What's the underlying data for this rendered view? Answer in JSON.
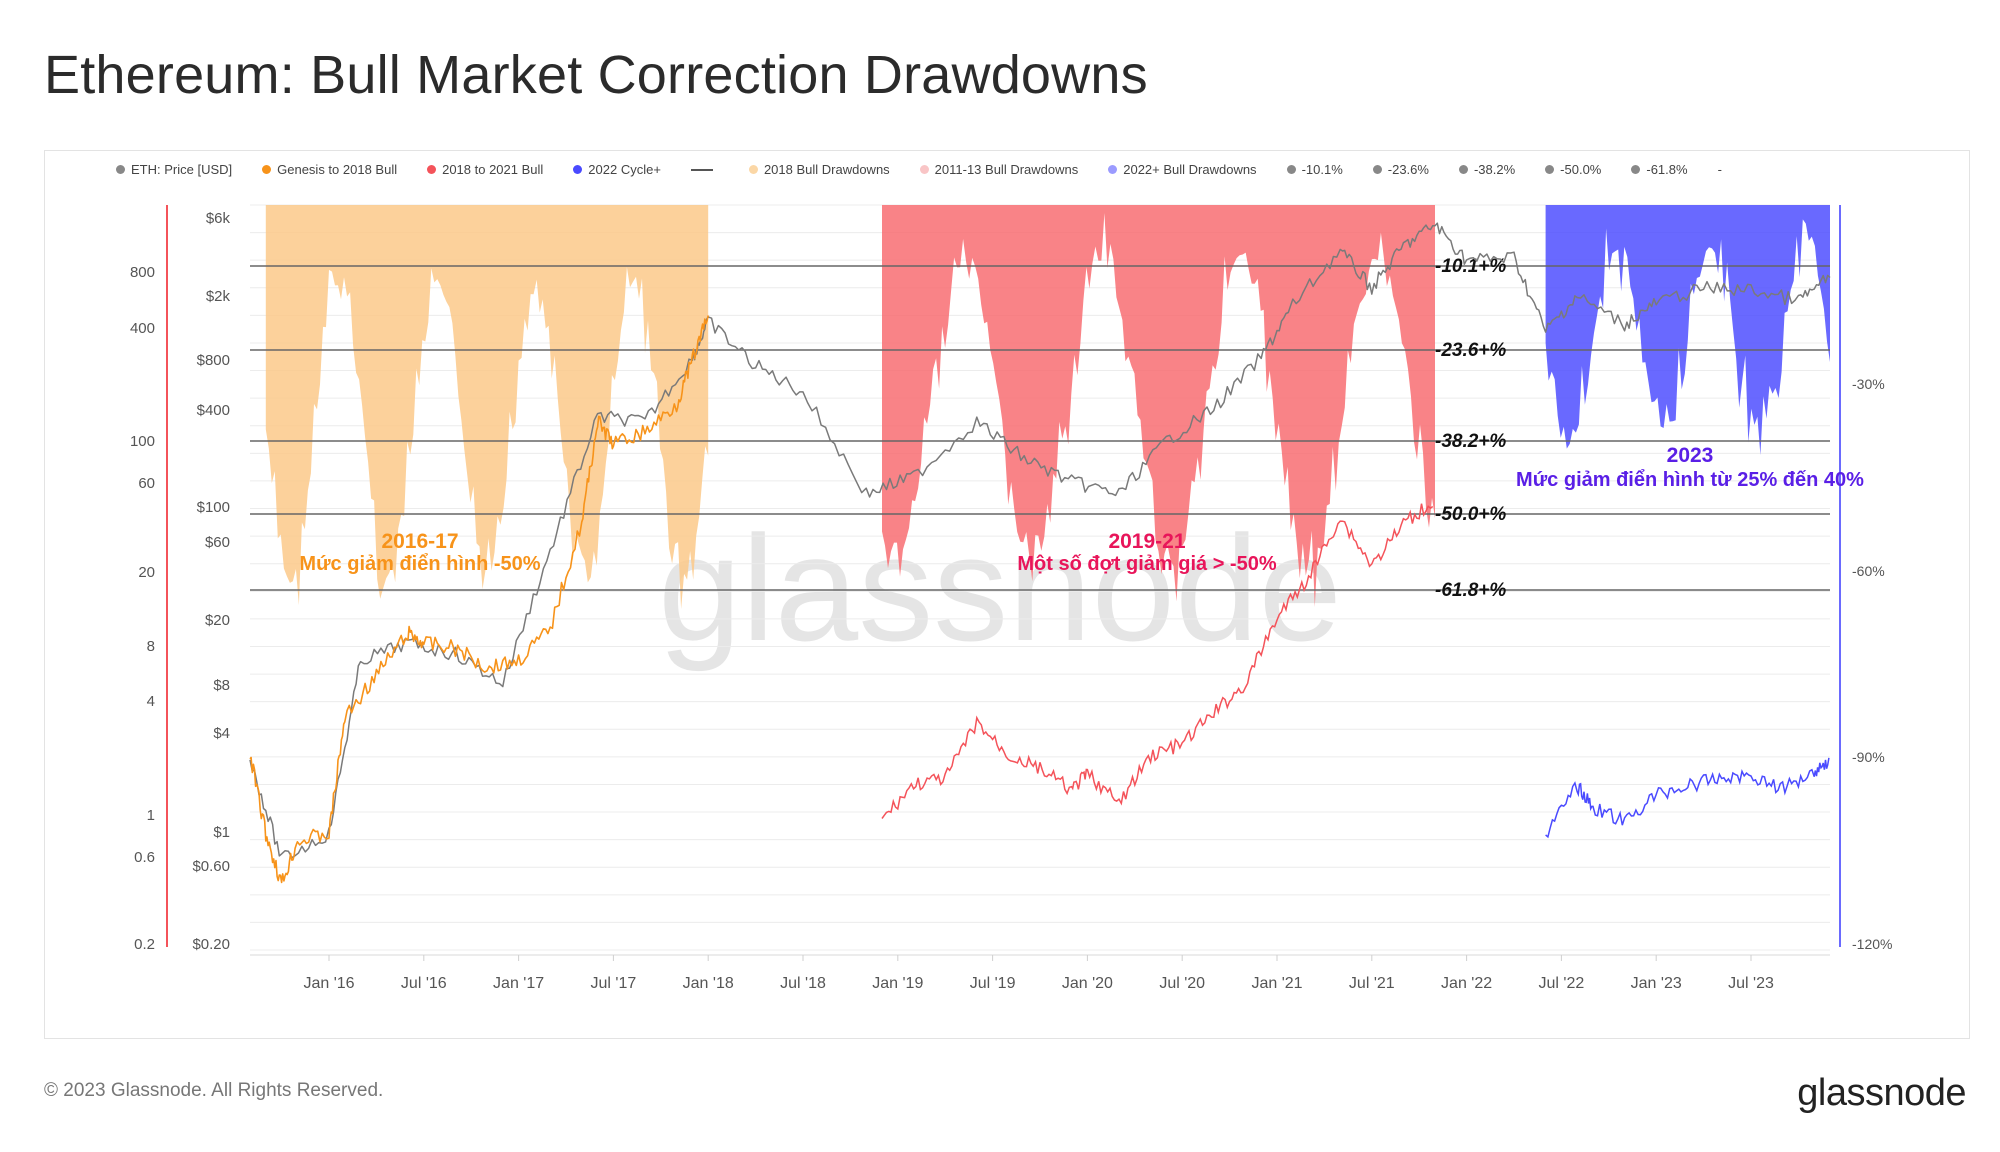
{
  "title": "Ethereum: Bull Market Correction Drawdowns",
  "footer": "© 2023 Glassnode. All Rights Reserved.",
  "brand": "glassnode",
  "watermark": "glassnode",
  "legend": [
    {
      "label": "ETH: Price [USD]",
      "color": "#888888",
      "kind": "dot"
    },
    {
      "label": "Genesis to 2018 Bull",
      "color": "#f7931a",
      "kind": "dot"
    },
    {
      "label": "2018 to 2021 Bull",
      "color": "#f4535a",
      "kind": "dot"
    },
    {
      "label": "2022 Cycle+",
      "color": "#4a4aff",
      "kind": "dot"
    },
    {
      "label": "",
      "color": "#555555",
      "kind": "line"
    },
    {
      "label": "2018 Bull Drawdowns",
      "color": "#fbd7a6",
      "kind": "dot"
    },
    {
      "label": "2011-13 Bull Drawdowns",
      "color": "#f9c5c6",
      "kind": "dot"
    },
    {
      "label": "2022+ Bull Drawdowns",
      "color": "#9b9bff",
      "kind": "dot"
    },
    {
      "label": "-10.1%",
      "color": "#888888",
      "kind": "dot"
    },
    {
      "label": "-23.6%",
      "color": "#888888",
      "kind": "dot"
    },
    {
      "label": "-38.2%",
      "color": "#888888",
      "kind": "dot"
    },
    {
      "label": "-50.0%",
      "color": "#888888",
      "kind": "dot"
    },
    {
      "label": "-61.8%",
      "color": "#888888",
      "kind": "dot"
    },
    {
      "label": "-",
      "color": "transparent",
      "kind": "text"
    }
  ],
  "chart_data": {
    "type": "line",
    "x_ticks": [
      "Jan '16",
      "Jul '16",
      "Jan '17",
      "Jul '17",
      "Jan '18",
      "Jul '18",
      "Jan '19",
      "Jul '19",
      "Jan '20",
      "Jul '20",
      "Jan '21",
      "Jul '21",
      "Jan '22",
      "Jul '22",
      "Jan '23",
      "Jul '23"
    ],
    "y_left_outer_ticks": [
      "800",
      "400",
      "100",
      "60",
      "20",
      "8",
      "4",
      "1",
      "0.6",
      "0.2"
    ],
    "y_left_price_ticks": [
      "$6k",
      "$2k",
      "$800",
      "$400",
      "$100",
      "$60",
      "$20",
      "$8",
      "$4",
      "$1",
      "$0.60",
      "$0.20"
    ],
    "y_right_ticks": [
      "-30%",
      "-60%",
      "-90%",
      "-120%"
    ],
    "fib_levels": [
      {
        "label": "-10.1+%",
        "value": -10.1
      },
      {
        "label": "-23.6+%",
        "value": -23.6
      },
      {
        "label": "-38.2+%",
        "value": -38.2
      },
      {
        "label": "-50.0+%",
        "value": -50.0
      },
      {
        "label": "-61.8+%",
        "value": -61.8
      }
    ],
    "annotations": [
      {
        "id": "a2016",
        "title": "2016-17",
        "text": "Mức giảm điển hình -50%",
        "color": "#f7931a"
      },
      {
        "id": "a2019",
        "title": "2019-21",
        "text": "Một số đợt giảm giá > -50%",
        "color": "#e8155a"
      },
      {
        "id": "a2023",
        "title": "2023",
        "text": "Mức giảm điển hình từ 25% đến 40%",
        "color": "#5a1fe6"
      }
    ],
    "eth_price_usd": {
      "dates": [
        "2015-08",
        "2015-10",
        "2016-01",
        "2016-03",
        "2016-06",
        "2016-09",
        "2016-12",
        "2017-03",
        "2017-06",
        "2017-09",
        "2017-12",
        "2018-01",
        "2018-04",
        "2018-07",
        "2018-11",
        "2019-02",
        "2019-06",
        "2019-09",
        "2019-12",
        "2020-03",
        "2020-06",
        "2020-09",
        "2020-12",
        "2021-02",
        "2021-05",
        "2021-07",
        "2021-09",
        "2021-11",
        "2022-01",
        "2022-04",
        "2022-06",
        "2022-08",
        "2022-11",
        "2023-01",
        "2023-04",
        "2023-07",
        "2023-10",
        "2023-12"
      ],
      "values": [
        2.8,
        0.7,
        1.0,
        11,
        14,
        12,
        8,
        50,
        320,
        300,
        720,
        1200,
        650,
        450,
        110,
        140,
        300,
        180,
        130,
        110,
        230,
        360,
        730,
        1500,
        3200,
        1900,
        3400,
        4600,
        2800,
        2900,
        1050,
        1700,
        1150,
        1550,
        1900,
        1850,
        1600,
        2200
      ]
    },
    "genesis_to_2018_bull": {
      "dates": [
        "2015-08",
        "2015-09",
        "2015-10",
        "2015-11",
        "2016-01",
        "2016-02",
        "2016-04",
        "2016-06",
        "2016-07",
        "2016-09",
        "2016-11",
        "2017-01",
        "2017-03",
        "2017-05",
        "2017-06",
        "2017-07",
        "2017-09",
        "2017-11",
        "2017-12",
        "2018-01"
      ],
      "values": [
        3.0,
        1.0,
        0.5,
        0.9,
        1.0,
        5,
        9,
        16,
        14,
        13,
        10,
        11,
        17,
        75,
        300,
        220,
        260,
        380,
        700,
        1300
      ]
    },
    "bull_2018_to_2021": {
      "dates": [
        "2018-12",
        "2019-02",
        "2019-04",
        "2019-06",
        "2019-08",
        "2019-10",
        "2019-12",
        "2020-01",
        "2020-03",
        "2020-05",
        "2020-07",
        "2020-09",
        "2020-11",
        "2021-01",
        "2021-03",
        "2021-05",
        "2021-07",
        "2021-09",
        "2021-11"
      ],
      "values": [
        90,
        140,
        150,
        300,
        200,
        170,
        130,
        160,
        110,
        200,
        230,
        340,
        480,
        1100,
        1800,
        3800,
        2100,
        3500,
        4700
      ]
    },
    "cycle_2022": {
      "dates": [
        "2022-06",
        "2022-08",
        "2022-09",
        "2022-11",
        "2023-01",
        "2023-03",
        "2023-05",
        "2023-07",
        "2023-09",
        "2023-11",
        "2023-12"
      ],
      "values": [
        1000,
        1700,
        1350,
        1150,
        1550,
        1700,
        1850,
        1900,
        1650,
        2000,
        2250
      ]
    }
  }
}
